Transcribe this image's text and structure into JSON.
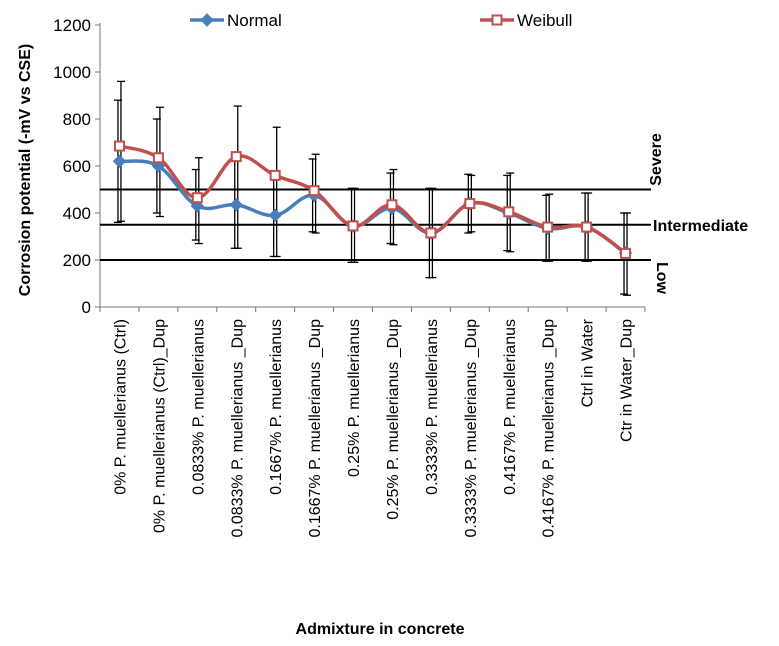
{
  "chart_data": {
    "type": "line",
    "title": "",
    "xlabel": "Admixture in concrete",
    "ylabel": "Corrosion potential (-mV vs CSE)",
    "ylim": [
      0,
      1200
    ],
    "yticks": [
      0,
      200,
      400,
      600,
      800,
      1000,
      1200
    ],
    "grid": false,
    "legend_position": "top",
    "categories": [
      "0% P. muellerianus  (Ctrl)",
      "0% P. muellerianus  (Ctrl)_Dup",
      "0.0833% P. muellerianus",
      "0.0833% P. muellerianus _Dup",
      "0.1667% P. muellerianus",
      "0.1667% P. muellerianus _Dup",
      "0.25% P. muellerianus",
      "0.25% P. muellerianus _Dup",
      "0.3333% P. muellerianus",
      "0.3333% P. muellerianus _Dup",
      "0.4167% P. muellerianus",
      "0.4167% P. muellerianus _Dup",
      "Ctrl in Water",
      "Ctr in Water_Dup"
    ],
    "series": [
      {
        "name": "Normal",
        "color": "#4a7ebb",
        "marker": "diamond",
        "values": [
          620,
          600,
          430,
          435,
          390,
          475,
          345,
          420,
          315,
          440,
          400,
          335,
          340,
          230
        ],
        "error_low": [
          360,
          400,
          285,
          250,
          215,
          320,
          190,
          270,
          125,
          315,
          240,
          195,
          195,
          55
        ],
        "error_high": [
          880,
          800,
          585,
          630,
          565,
          630,
          505,
          570,
          505,
          565,
          560,
          475,
          485,
          400
        ]
      },
      {
        "name": "Weibull",
        "color": "#c0504d",
        "marker": "square",
        "values": [
          685,
          635,
          465,
          640,
          560,
          495,
          345,
          435,
          315,
          440,
          405,
          340,
          340,
          228
        ],
        "error_low": [
          365,
          385,
          270,
          250,
          215,
          315,
          190,
          265,
          125,
          320,
          235,
          195,
          195,
          50
        ],
        "error_high": [
          960,
          850,
          635,
          855,
          765,
          650,
          505,
          585,
          505,
          560,
          570,
          480,
          485,
          400
        ]
      }
    ],
    "thresholds": [
      {
        "value": 500,
        "label": "Severe"
      },
      {
        "value": 350,
        "label": "Intermediate"
      },
      {
        "value": 200,
        "label": "Low"
      }
    ]
  }
}
